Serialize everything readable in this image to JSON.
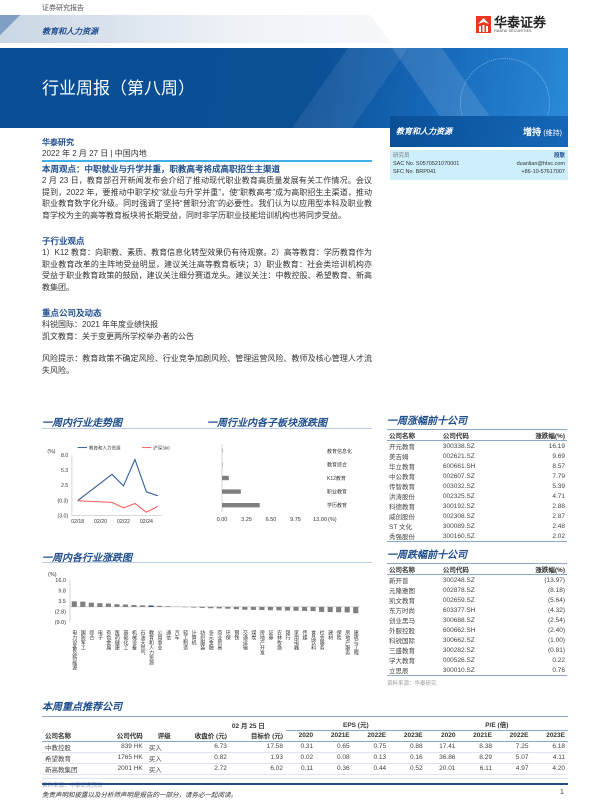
{
  "header": {
    "doc_type": "证券研究报告",
    "sector": "教育和人力资源",
    "logo_cn": "华泰证券",
    "logo_en": "HUATAI SECURITIES",
    "title": "行业周报（第八周）",
    "brand_color": "#0a4f96",
    "accent_color": "#e8371e"
  },
  "meta": {
    "org": "华泰研究",
    "date": "2022 年 2 月 27 日",
    "region": "中国内地"
  },
  "rating_panel": {
    "sector": "教育和人力资源",
    "rating": "增持",
    "rating_note": "(维持)",
    "analyst_label": "研究员",
    "analyst_name": "段联",
    "sac": "SAC No. S0570521070001",
    "sfc": "SFC No. BRP041",
    "email": "duanlian@htsc.com",
    "phone": "+86-10-57617007"
  },
  "view": {
    "title": "本周观点：中职就业与升学并重，职教高考将成高职招生主渠道",
    "body": "2 月 23 日，教育部召开新闻发布会介绍了推动现代职业教育高质量发展有关工作情况。会议提到，2022 年，要推动中职学校“就业与升学并重”，使“职教高考”成为高职招生主渠道，推动职业教育数字化升级。同时强调了坚持“普职分流”的必要性。我们认为以应用型本科及职业教育学校为主的高等教育板块将长期受益，同时非学历职业技能培训机构也将同步受益。"
  },
  "sub_view": {
    "title": "子行业观点",
    "body": "1）K12 教育：向职教、素质、教育信息化转型效果仍有待观察。2）高等教育：学历教育作为职业教育改革的主阵地受益明显，建议关注高等教育板块；3）职业教育：社会类培训机构亦受益于职业教育政策的鼓励，建议关注细分赛道龙头。建议关注：中教控股、希望教育、新高教集团。"
  },
  "companies": {
    "title": "重点公司及动态",
    "items": [
      "科锐国际：2021 年年度业绩快报",
      "凯文教育：关于变更两所学校举办者的公告"
    ]
  },
  "risk": "风险提示：教育政策不确定风险、行业竞争加剧风险、管理运营风险、教师及核心管理人才流失风险。",
  "chart_data": [
    {
      "type": "line",
      "title": "一周内行业走势图",
      "ylabel": "(%)",
      "yticks": [
        "8.0",
        "5.3",
        "2.5",
        "(0.3)",
        "(3.0)"
      ],
      "ylim": [
        -3.0,
        8.0
      ],
      "xticks": [
        "02/18",
        "02/20",
        "02/22",
        "02/24"
      ],
      "x": [
        "02/18",
        "02/21",
        "02/22",
        "02/23",
        "02/24",
        "02/25"
      ],
      "legend": "top",
      "series": [
        {
          "name": "教育和人力资源",
          "color": "#2b5797",
          "values": [
            -0.3,
            4.5,
            2.4,
            7.2,
            1.3,
            0.6
          ]
        },
        {
          "name": "沪深300",
          "color": "#f25c5c",
          "values": [
            -0.3,
            -0.6,
            -1.6,
            -0.8,
            -2.4,
            -1.3
          ]
        }
      ]
    },
    {
      "type": "bar",
      "orientation": "horizontal",
      "title": "一周行业内各子板块涨跌图",
      "xlabel": "(%)",
      "xticks": [
        "0.00",
        "3.25",
        "6.50",
        "9.75",
        "13.00"
      ],
      "xlim": [
        0,
        13
      ],
      "categories": [
        "教育信息化",
        "教育综合",
        "K12教育",
        "职业教育",
        "学历教育"
      ],
      "values": [
        0.0,
        0.0,
        0.9,
        2.5,
        5.0
      ],
      "color": "#7f7f7f"
    },
    {
      "type": "bar",
      "title": "一周内各行业涨跌图",
      "ylabel": "(%)",
      "yticks": [
        "16.0",
        "9.8",
        "3.5",
        "(2.8)",
        "(9.0)"
      ],
      "ylim": [
        -9,
        16
      ],
      "highlight": "教育和人力资源",
      "highlight_color": "#1f3f7a",
      "color": "#7f7f7f",
      "categories": [
        "电力设备及新能源",
        "国防军工",
        "综合",
        "电子",
        "有色金属",
        "医药健康",
        "基础化工",
        "机械设备",
        "石油天然气",
        "教育和人力资源",
        "公用事业",
        "通信",
        "汽车",
        "轻工制造",
        "计算机",
        "纺织服装",
        "多元金融",
        "商业贸易",
        "环保",
        "钢铁",
        "交通运输",
        "煤炭",
        "房地产开发",
        "证券",
        "农林牧渔",
        "银行",
        "家用电器",
        "传媒",
        "食品饮料",
        "社会服务",
        "建材",
        "保险",
        "房地产服务",
        "建筑与工程"
      ],
      "values": [
        3.3,
        3.1,
        2.5,
        2.2,
        2.0,
        1.6,
        1.4,
        1.1,
        0.9,
        0.8,
        0.6,
        0.4,
        0.1,
        -0.2,
        -0.4,
        -0.6,
        -0.8,
        -0.9,
        -1.1,
        -1.4,
        -1.7,
        -1.8,
        -1.9,
        -2.0,
        -2.1,
        -2.2,
        -2.3,
        -2.4,
        -2.5,
        -3.0,
        -3.1,
        -3.2,
        -3.3,
        -3.8
      ]
    }
  ],
  "gainers": {
    "title": "一周涨幅前十公司",
    "headers": [
      "公司名称",
      "公司代码",
      "涨跌幅(%)"
    ],
    "rows": [
      [
        "开元教育",
        "300338.SZ",
        "16.19"
      ],
      [
        "美吉姆",
        "002621.SZ",
        "9.69"
      ],
      [
        "华立教育",
        "600661.SH",
        "8.57"
      ],
      [
        "中公教育",
        "002607.SZ",
        "7.79"
      ],
      [
        "传智教育",
        "003032.SZ",
        "5.39"
      ],
      [
        "洪涛股份",
        "002325.SZ",
        "4.71"
      ],
      [
        "科德教育",
        "300192.SZ",
        "2.88"
      ],
      [
        "威创股份",
        "002308.SZ",
        "2.87"
      ],
      [
        "ST 文化",
        "300089.SZ",
        "2.48"
      ],
      [
        "秀强股份",
        "300160.SZ",
        "2.02"
      ]
    ]
  },
  "losers": {
    "title": "一周跌幅前十公司",
    "headers": [
      "公司名称",
      "公司代码",
      "涨跌幅(%)"
    ],
    "rows": [
      [
        "新开普",
        "300248.SZ",
        "(13.97)"
      ],
      [
        "元隆雅图",
        "002878.SZ",
        "(8.18)"
      ],
      [
        "凯文教育",
        "002659.SZ",
        "(5.64)"
      ],
      [
        "东方时尚",
        "603377.SH",
        "(4.32)"
      ],
      [
        "创业黑马",
        "300688.SZ",
        "(2.54)"
      ],
      [
        "外服控股",
        "600662.SH",
        "(2.40)"
      ],
      [
        "科锐国际",
        "300662.SZ",
        "(1.00)"
      ],
      [
        "三盛教育",
        "300282.SZ",
        "(0.81)"
      ],
      [
        "学大教育",
        "000526.SZ",
        "0.22"
      ],
      [
        "立思辰",
        "300010.SZ",
        "0.76"
      ]
    ],
    "source": "资料来源：华泰研究"
  },
  "recommend": {
    "title": "本周重点推荐公司",
    "date_header": "02 月 25 日",
    "eps_header": "EPS (元)",
    "pe_header": "P/E (倍)",
    "headers": [
      "公司名称",
      "公司代码",
      "评级",
      "收盘价 (元)",
      "目标价 (元)",
      "2020",
      "2021E",
      "2022E",
      "2023E",
      "2020",
      "2021E",
      "2022E",
      "2023E"
    ],
    "rows": [
      [
        "中教控股",
        "839 HK",
        "买入",
        "6.73",
        "17.58",
        "0.31",
        "0.65",
        "0.75",
        "0.88",
        "17.41",
        "8.38",
        "7.25",
        "6.18"
      ],
      [
        "希望教育",
        "1765 HK",
        "买入",
        "0.82",
        "1.93",
        "0.02",
        "0.08",
        "0.13",
        "0.16",
        "36.86",
        "8.29",
        "5.07",
        "4.11"
      ],
      [
        "新高教集团",
        "2001 HK",
        "买入",
        "2.72",
        "6.02",
        "0.11",
        "0.36",
        "0.44",
        "0.52",
        "20.01",
        "6.11",
        "4.97",
        "4.20"
      ]
    ],
    "source": "资料来源：华泰研究预测"
  },
  "footer": {
    "disclaimer": "免责声明和披露以及分析师声明是报告的一部分，请务必一起阅读。",
    "page": "1"
  }
}
